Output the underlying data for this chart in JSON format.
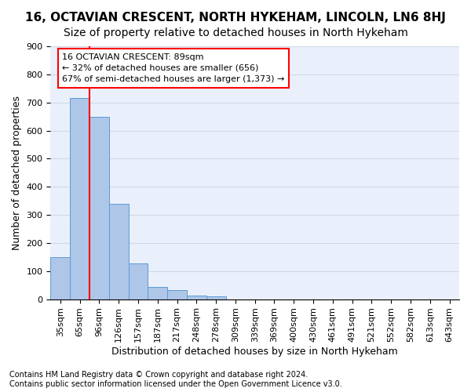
{
  "title": "16, OCTAVIAN CRESCENT, NORTH HYKEHAM, LINCOLN, LN6 8HJ",
  "subtitle": "Size of property relative to detached houses in North Hykeham",
  "xlabel": "Distribution of detached houses by size in North Hykeham",
  "ylabel": "Number of detached properties",
  "bar_labels": [
    "35sqm",
    "65sqm",
    "96sqm",
    "126sqm",
    "157sqm",
    "187sqm",
    "217sqm",
    "248sqm",
    "278sqm",
    "309sqm",
    "339sqm",
    "369sqm",
    "400sqm",
    "430sqm",
    "461sqm",
    "491sqm",
    "521sqm",
    "552sqm",
    "582sqm",
    "613sqm",
    "643sqm"
  ],
  "bar_values": [
    150,
    715,
    650,
    340,
    128,
    43,
    32,
    13,
    10,
    0,
    0,
    0,
    0,
    0,
    0,
    0,
    0,
    0,
    0,
    0,
    0
  ],
  "annotation_text": "16 OCTAVIAN CRESCENT: 89sqm\n← 32% of detached houses are smaller (656)\n67% of semi-detached houses are larger (1,373) →",
  "bar_color": "#aec6e8",
  "bar_edge_color": "#5b9bd5",
  "red_line_color": "red",
  "red_line_x": 1.5,
  "ylim": [
    0,
    900
  ],
  "yticks": [
    0,
    100,
    200,
    300,
    400,
    500,
    600,
    700,
    800,
    900
  ],
  "grid_color": "#d0d8e8",
  "background_color": "#eaf0fb",
  "footer": "Contains HM Land Registry data © Crown copyright and database right 2024.\nContains public sector information licensed under the Open Government Licence v3.0.",
  "title_fontsize": 11,
  "subtitle_fontsize": 10,
  "xlabel_fontsize": 9,
  "ylabel_fontsize": 9,
  "tick_fontsize": 8,
  "annotation_fontsize": 8,
  "footer_fontsize": 7
}
